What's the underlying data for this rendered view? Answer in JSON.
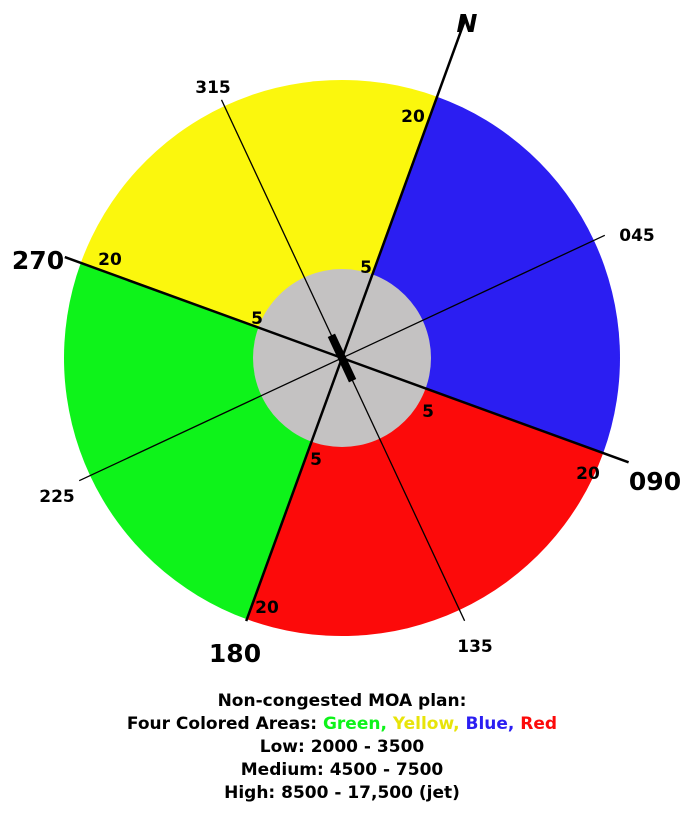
{
  "compass": {
    "north": "N",
    "labels": [
      "20",
      "5",
      "045",
      "20",
      "090",
      "5",
      "135",
      "5",
      "20",
      "180",
      "225",
      "5",
      "20",
      "270",
      "315"
    ]
  },
  "caption": {
    "title": "Non-congested MOA plan:",
    "areas_label": "Four Colored Areas:",
    "areas": [
      "Green,",
      "Yellow,",
      "Blue,",
      "Red"
    ],
    "low": "Low: 2000 - 3500",
    "medium": "Medium: 4500 - 7500",
    "high": "High: 8500 - 17,500 (jet)"
  }
}
